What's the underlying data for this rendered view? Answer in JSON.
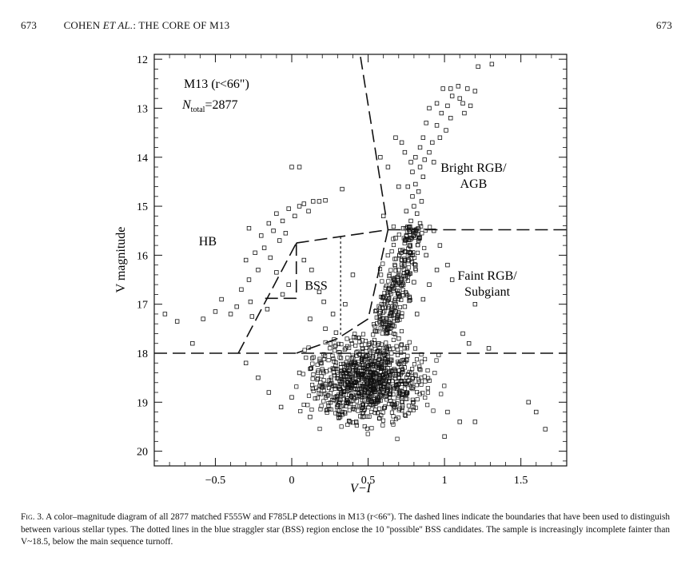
{
  "header": {
    "page_left": "673",
    "running_title_prefix": "COHEN ",
    "running_title_etal": "ET AL.",
    "running_title_suffix": ": THE CORE OF M13",
    "page_right": "673"
  },
  "caption": {
    "label": "Fig. 3.",
    "text": "A color–magnitude diagram of all 2877 matched F555W and F785LP detections in M13 (r<66\"). The dashed lines indicate the boundaries that have been used to distinguish between various stellar types. The dotted lines in the blue straggler star (BSS) region enclose the 10 ''possible'' BSS candidates. The sample is increasingly incomplete fainter than V~18.5, below the main sequence turnoff."
  },
  "chart_data": {
    "type": "scatter",
    "title_line1": "M13 (r<66\")",
    "title_line2": "N",
    "title_line2_sub": "total",
    "title_line2_value": "=2877",
    "xlabel": "V−I",
    "ylabel": "V magnitude",
    "xlim": [
      -0.9,
      1.8
    ],
    "ylim": [
      20.3,
      11.9
    ],
    "y_inverted": true,
    "x_ticks": [
      -0.5,
      0,
      0.5,
      1,
      1.5
    ],
    "x_tick_labels": [
      "−0.5",
      "0",
      "0.5",
      "1",
      "1.5"
    ],
    "y_ticks": [
      12,
      13,
      14,
      15,
      16,
      17,
      18,
      19,
      20
    ],
    "y_tick_labels": [
      "12",
      "13",
      "14",
      "15",
      "16",
      "17",
      "18",
      "19",
      "20"
    ],
    "marker": "open-square",
    "region_labels": [
      {
        "lines": [
          "HB"
        ],
        "x": -0.55,
        "y": 15.8
      },
      {
        "lines": [
          "BSS"
        ],
        "x": 0.16,
        "y": 16.7
      },
      {
        "lines": [
          "Bright RGB/",
          "AGB"
        ],
        "x": 1.19,
        "y": 14.3
      },
      {
        "lines": [
          "Faint RGB/",
          "Subgiant"
        ],
        "x": 1.28,
        "y": 16.5
      }
    ],
    "boundaries": {
      "dashed": [
        [
          [
            -0.9,
            18.0
          ],
          [
            1.8,
            18.0
          ]
        ],
        [
          [
            -0.35,
            18.0
          ],
          [
            0.03,
            15.75
          ]
        ],
        [
          [
            0.03,
            15.75
          ],
          [
            0.63,
            15.48
          ]
        ],
        [
          [
            0.63,
            15.48
          ],
          [
            1.8,
            15.48
          ]
        ],
        [
          [
            0.45,
            11.95
          ],
          [
            0.63,
            15.48
          ]
        ],
        [
          [
            0.63,
            15.48
          ],
          [
            0.5,
            17.3
          ]
        ],
        [
          [
            0.5,
            17.3
          ],
          [
            0.3,
            17.7
          ]
        ],
        [
          [
            0.3,
            17.7
          ],
          [
            0.03,
            18.0
          ]
        ],
        [
          [
            0.03,
            15.75
          ],
          [
            0.03,
            16.88
          ]
        ],
        [
          [
            0.03,
            16.88
          ],
          [
            -0.2,
            16.88
          ]
        ]
      ],
      "dotted": [
        [
          [
            0.32,
            15.62
          ],
          [
            0.32,
            17.62
          ]
        ]
      ]
    },
    "points": [
      [
        1.31,
        12.1
      ],
      [
        1.22,
        12.15
      ],
      [
        0.99,
        12.6
      ],
      [
        1.04,
        12.6
      ],
      [
        1.09,
        12.55
      ],
      [
        1.15,
        12.6
      ],
      [
        1.2,
        12.65
      ],
      [
        1.05,
        12.75
      ],
      [
        1.1,
        12.8
      ],
      [
        0.95,
        12.9
      ],
      [
        1.02,
        12.95
      ],
      [
        1.12,
        12.9
      ],
      [
        1.17,
        12.95
      ],
      [
        0.9,
        13.0
      ],
      [
        0.98,
        13.1
      ],
      [
        1.04,
        13.2
      ],
      [
        1.13,
        13.1
      ],
      [
        0.88,
        13.3
      ],
      [
        0.95,
        13.35
      ],
      [
        1.01,
        13.45
      ],
      [
        0.86,
        13.6
      ],
      [
        0.92,
        13.7
      ],
      [
        0.97,
        13.6
      ],
      [
        0.84,
        13.8
      ],
      [
        0.9,
        13.9
      ],
      [
        0.81,
        14.0
      ],
      [
        0.87,
        14.05
      ],
      [
        0.93,
        14.1
      ],
      [
        0.72,
        13.7
      ],
      [
        0.78,
        14.1
      ],
      [
        0.84,
        14.2
      ],
      [
        0.79,
        14.3
      ],
      [
        0.86,
        14.4
      ],
      [
        0.81,
        14.55
      ],
      [
        0.76,
        14.6
      ],
      [
        0.83,
        14.7
      ],
      [
        0.79,
        14.8
      ],
      [
        0.85,
        14.9
      ],
      [
        0.8,
        15.0
      ],
      [
        0.75,
        15.1
      ],
      [
        0.82,
        15.15
      ],
      [
        0.78,
        15.3
      ],
      [
        0.84,
        15.35
      ],
      [
        0.73,
        15.45
      ],
      [
        0.8,
        15.5
      ],
      [
        0.75,
        15.6
      ],
      [
        0.83,
        15.7
      ],
      [
        0.77,
        15.8
      ],
      [
        0.71,
        15.9
      ],
      [
        0.68,
        15.65
      ],
      [
        0.79,
        16.0
      ],
      [
        0.74,
        16.1
      ],
      [
        0.81,
        16.2
      ],
      [
        0.7,
        16.3
      ],
      [
        0.76,
        16.35
      ],
      [
        0.67,
        16.5
      ],
      [
        0.73,
        16.6
      ],
      [
        0.8,
        16.55
      ],
      [
        0.64,
        16.7
      ],
      [
        0.7,
        16.8
      ],
      [
        0.77,
        16.85
      ],
      [
        0.61,
        16.95
      ],
      [
        0.68,
        17.0
      ],
      [
        0.74,
        17.05
      ],
      [
        0.58,
        17.15
      ],
      [
        0.65,
        17.2
      ],
      [
        0.72,
        17.25
      ],
      [
        0.6,
        17.4
      ],
      [
        0.67,
        17.45
      ],
      [
        0.55,
        17.55
      ],
      [
        0.62,
        17.6
      ],
      [
        0.7,
        17.7
      ],
      [
        0.57,
        17.8
      ],
      [
        0.82,
        17.2
      ],
      [
        0.86,
        16.9
      ],
      [
        0.9,
        16.6
      ],
      [
        0.95,
        16.3
      ],
      [
        0.88,
        16.0
      ],
      [
        0.97,
        15.8
      ],
      [
        1.02,
        16.2
      ],
      [
        0.93,
        15.5
      ],
      [
        1.05,
        16.5
      ],
      [
        1.2,
        17.0
      ],
      [
        1.12,
        17.6
      ],
      [
        1.16,
        17.8
      ],
      [
        1.29,
        17.9
      ],
      [
        0.7,
        14.6
      ],
      [
        0.63,
        14.2
      ],
      [
        0.58,
        14.0
      ],
      [
        0.74,
        13.9
      ],
      [
        0.68,
        13.6
      ],
      [
        0.6,
        15.2
      ],
      [
        -0.28,
        15.45
      ],
      [
        -0.2,
        15.6
      ],
      [
        -0.15,
        15.35
      ],
      [
        -0.1,
        15.15
      ],
      [
        -0.06,
        15.3
      ],
      [
        -0.02,
        15.05
      ],
      [
        0.02,
        15.2
      ],
      [
        0.05,
        15.0
      ],
      [
        0.08,
        14.95
      ],
      [
        0.11,
        15.1
      ],
      [
        0.14,
        14.9
      ],
      [
        0.18,
        14.9
      ],
      [
        0.22,
        14.88
      ],
      [
        -0.12,
        15.5
      ],
      [
        -0.08,
        15.7
      ],
      [
        -0.04,
        15.55
      ],
      [
        -0.18,
        15.85
      ],
      [
        -0.24,
        15.95
      ],
      [
        -0.3,
        16.1
      ],
      [
        -0.14,
        16.05
      ],
      [
        -0.22,
        16.3
      ],
      [
        -0.28,
        16.5
      ],
      [
        -0.1,
        16.35
      ],
      [
        -0.33,
        16.7
      ],
      [
        -0.27,
        16.95
      ],
      [
        -0.16,
        17.1
      ],
      [
        -0.02,
        16.6
      ],
      [
        -0.4,
        17.2
      ],
      [
        -0.46,
        16.9
      ],
      [
        -0.5,
        17.15
      ],
      [
        -0.58,
        17.3
      ],
      [
        -0.65,
        17.8
      ],
      [
        -0.75,
        17.35
      ],
      [
        -0.83,
        17.2
      ],
      [
        0.0,
        14.2
      ],
      [
        0.05,
        14.2
      ],
      [
        0.33,
        14.65
      ],
      [
        -0.06,
        16.8
      ],
      [
        -0.36,
        17.05
      ],
      [
        -0.26,
        17.25
      ],
      [
        0.08,
        16.1
      ],
      [
        0.13,
        16.3
      ],
      [
        0.18,
        16.75
      ],
      [
        0.21,
        16.95
      ],
      [
        0.27,
        17.2
      ],
      [
        0.35,
        17.0
      ],
      [
        0.4,
        16.4
      ],
      [
        0.22,
        17.5
      ],
      [
        0.29,
        17.58
      ],
      [
        0.12,
        17.3
      ],
      [
        1.55,
        19.0
      ],
      [
        1.6,
        19.2
      ],
      [
        1.66,
        19.55
      ],
      [
        1.02,
        19.2
      ],
      [
        1.1,
        19.4
      ],
      [
        1.2,
        19.4
      ],
      [
        1.0,
        19.7
      ],
      [
        -0.3,
        18.2
      ],
      [
        -0.22,
        18.5
      ],
      [
        -0.15,
        18.8
      ],
      [
        -0.07,
        19.1
      ],
      [
        0.05,
        18.4
      ],
      [
        0.0,
        18.9
      ],
      [
        0.12,
        19.3
      ]
    ],
    "dense_region": {
      "x_center": 0.5,
      "y_center": 18.55,
      "note": "Main-sequence turnoff and subgiant branch densely populated below V≈17.3"
    }
  }
}
